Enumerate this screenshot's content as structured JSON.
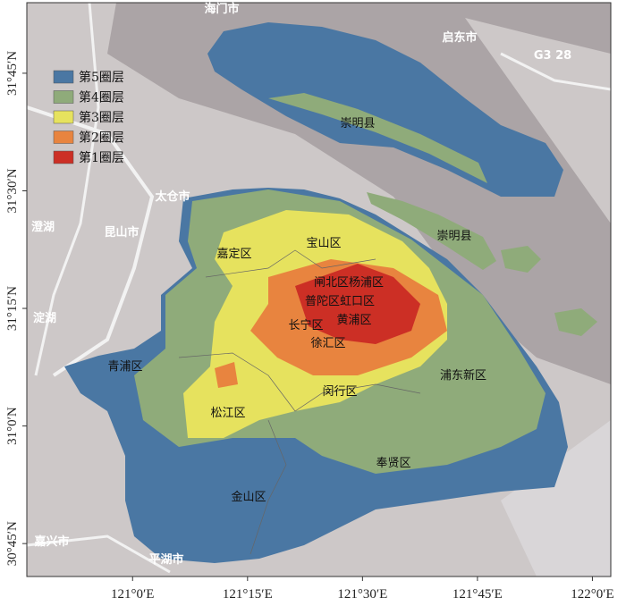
{
  "map": {
    "legend": [
      {
        "label": "第5圈层",
        "color": "#4a77a3"
      },
      {
        "label": "第4圈层",
        "color": "#8fab7a"
      },
      {
        "label": "第3圈层",
        "color": "#e6e25e"
      },
      {
        "label": "第2圈层",
        "color": "#e8843f"
      },
      {
        "label": "第1圈层",
        "color": "#cc2f25"
      }
    ],
    "xlim": [
      120.77,
      122.04
    ],
    "ylim": [
      30.68,
      31.9
    ],
    "xticks": [
      {
        "value": 121,
        "label": "121°0′E"
      },
      {
        "value": 121.25,
        "label": "121°15′E"
      },
      {
        "value": 121.5,
        "label": "121°30′E"
      },
      {
        "value": 121.75,
        "label": "121°45′E"
      },
      {
        "value": 122,
        "label": "122°0′E"
      }
    ],
    "yticks": [
      {
        "value": 31.75,
        "label": "31°45′N"
      },
      {
        "value": 31.5,
        "label": "31°30′N"
      },
      {
        "value": 31.25,
        "label": "31°15′N"
      },
      {
        "value": 31,
        "label": "31°0′N"
      },
      {
        "value": 30.75,
        "label": "30°45′N"
      }
    ],
    "district_labels": [
      "崇明县",
      "崇明县",
      "宝山区",
      "嘉定区",
      "闸北区杨浦区",
      "普陀区虹口区",
      "长宁区",
      "黄浦区",
      "徐汇区",
      "青浦区",
      "松江区",
      "闵行区",
      "浦东新区",
      "奉贤区",
      "金山区"
    ],
    "place_labels": [
      "海门市",
      "启东市",
      "G3 28",
      "太仓市",
      "昆山市",
      "澄湖",
      "淀湖",
      "嘉兴市",
      "平湖市"
    ]
  }
}
